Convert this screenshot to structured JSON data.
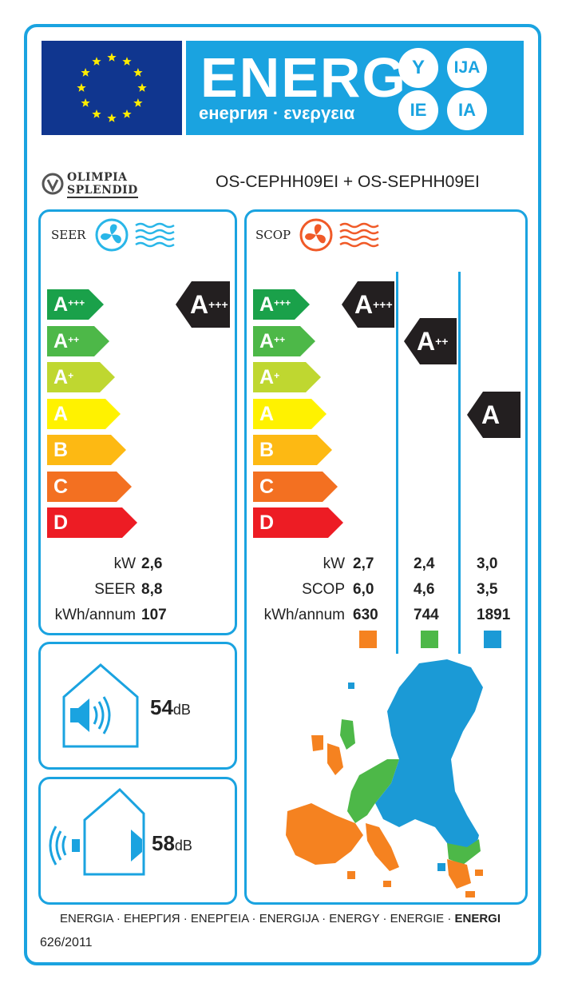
{
  "header": {
    "energy_word": "ENERG",
    "energy_sub": "енергия · ενεργεια",
    "suffixes": [
      "Y",
      "IJA",
      "IE",
      "IA"
    ]
  },
  "supplier": {
    "brand_line1": "OLIMPIA",
    "brand_line2": "SPLENDID",
    "model": "OS-CEPHH09EI + OS-SEPHH09EI"
  },
  "scale_classes": [
    "A+++",
    "A++",
    "A+",
    "A",
    "B",
    "C",
    "D"
  ],
  "scale_colors": [
    "#1aa14a",
    "#4db848",
    "#bfd730",
    "#fff200",
    "#fdb913",
    "#f37021",
    "#ed1c24"
  ],
  "cooling": {
    "title": "SEER",
    "rating": "A+++",
    "rows": [
      {
        "label": "kW",
        "value": "2,6"
      },
      {
        "label": "SEER",
        "value": "8,8"
      },
      {
        "label": "kWh/annum",
        "value": "107"
      }
    ]
  },
  "heating": {
    "title": "SCOP",
    "ratings": [
      "A+++",
      "A++",
      "A"
    ],
    "rows": [
      {
        "label": "kW",
        "values": [
          "2,7",
          "2,4",
          "3,0"
        ]
      },
      {
        "label": "SCOP",
        "values": [
          "6,0",
          "4,6",
          "3,5"
        ]
      },
      {
        "label": "kWh/annum",
        "values": [
          "630",
          "744",
          "1891"
        ]
      }
    ],
    "zone_colors": [
      "#f58220",
      "#4db848",
      "#1b9ad6"
    ]
  },
  "noise": {
    "indoor": {
      "value": "54",
      "unit": "dB"
    },
    "outdoor": {
      "value": "58",
      "unit": "dB"
    }
  },
  "footer": {
    "languages": "ENERGIA · ЕНЕРГИЯ · ΕΝΕΡΓΕΙΑ · ENERGIJA · ENERGY · ENERGIE · ",
    "languages_bold": "ENERGI",
    "regulation": "626/2011"
  },
  "colors": {
    "frame": "#1aa3e0",
    "eu_blue": "#10368f",
    "eu_star": "#ffed00",
    "badge": "#231f20"
  }
}
